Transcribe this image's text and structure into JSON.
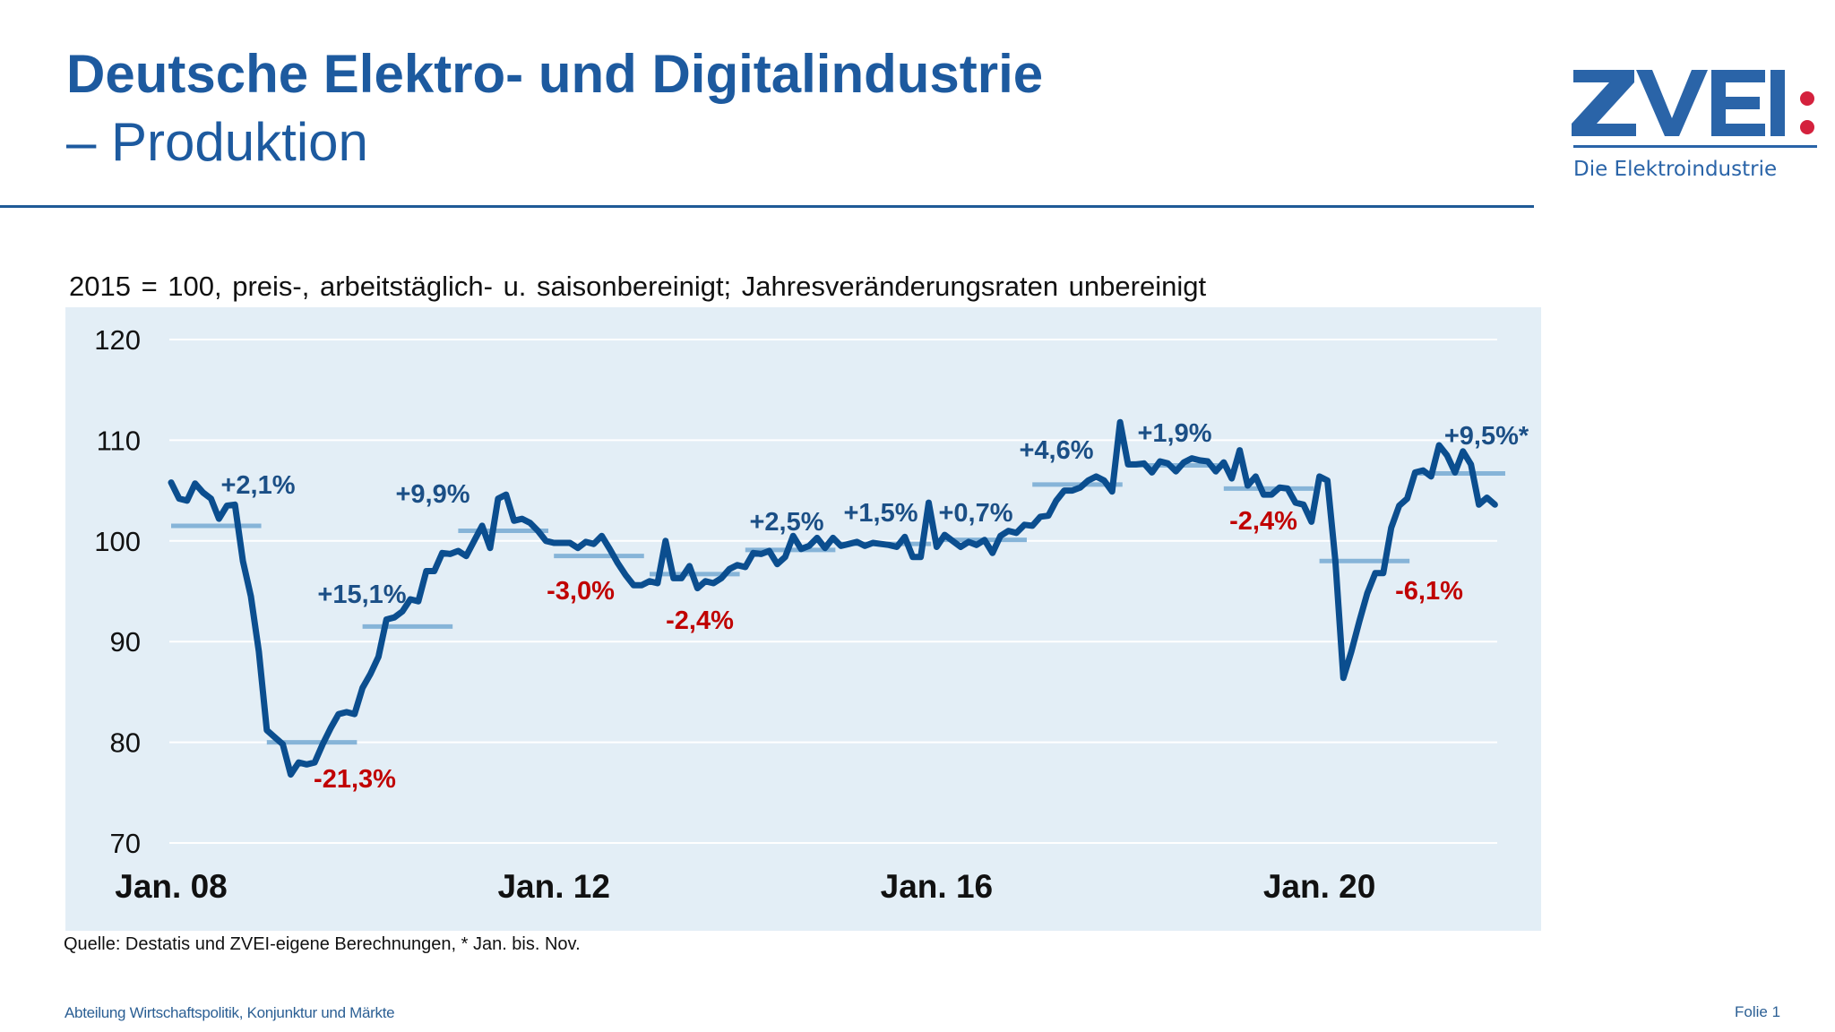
{
  "header": {
    "title_line1": "Deutsche Elektro- und Digitalindustrie",
    "title_line2": "– Produktion"
  },
  "logo": {
    "wordmark": "ZVEI:",
    "tagline": "Die Elektroindustrie",
    "colors": {
      "blue": "#2a64a8",
      "red": "#d4213d"
    }
  },
  "chart_data": {
    "type": "line",
    "subtitle": "2015 = 100, preis-, arbeitstäglich- u. saisonbereinigt; Jahresveränderungsraten unbereinigt",
    "ylim": [
      70,
      120
    ],
    "yticks": [
      "70",
      "80",
      "90",
      "100",
      "110",
      "120"
    ],
    "xticks": [
      {
        "label": "Jan. 08",
        "date": "2008-01"
      },
      {
        "label": "Jan. 12",
        "date": "2012-01"
      },
      {
        "label": "Jan. 16",
        "date": "2016-01"
      },
      {
        "label": "Jan. 20",
        "date": "2020-01"
      }
    ],
    "grid": true,
    "colors": {
      "line": "#0b4e8f",
      "average": "#86b4d8",
      "positive": "#1b4f86",
      "negative": "#c00000",
      "background": "#e3eef6"
    },
    "series": [
      {
        "start": "2008-01",
        "frequency": "monthly",
        "values": [
          105.8,
          104.2,
          104.0,
          105.7,
          104.8,
          104.2,
          102.2,
          103.5,
          103.6,
          98.0,
          94.5,
          89.0,
          81.2,
          80.5,
          79.8,
          76.8,
          78.0,
          77.8,
          78.0,
          79.8,
          81.4,
          82.8,
          83.0,
          82.8,
          85.4,
          86.8,
          88.5,
          92.2,
          92.4,
          93.0,
          94.2,
          94.0,
          97.0,
          97.0,
          98.8,
          98.7,
          99.0,
          98.5,
          100.0,
          101.5,
          99.3,
          104.2,
          104.6,
          102.0,
          102.2,
          101.8,
          101.0,
          100.0,
          99.8,
          99.8,
          99.8,
          99.3,
          99.9,
          99.7,
          100.5,
          99.2,
          97.8,
          96.6,
          95.6,
          95.6,
          96.0,
          95.8,
          100.0,
          96.3,
          96.3,
          97.5,
          95.3,
          96.0,
          95.8,
          96.3,
          97.2,
          97.6,
          97.4,
          98.8,
          98.7,
          99.0,
          97.7,
          98.4,
          100.5,
          99.2,
          99.5,
          100.3,
          99.3,
          100.3,
          99.5,
          99.7,
          99.9,
          99.5,
          99.8,
          99.7,
          99.6,
          99.4,
          100.4,
          98.4,
          98.4,
          103.8,
          99.4,
          100.6,
          100.0,
          99.4,
          99.9,
          99.6,
          100.1,
          98.8,
          100.5,
          101.0,
          100.8,
          101.6,
          101.5,
          102.4,
          102.5,
          104.0,
          105.0,
          105.0,
          105.3,
          106.0,
          106.4,
          106.0,
          104.9,
          111.8,
          107.6,
          107.6,
          107.7,
          106.8,
          107.9,
          107.7,
          106.9,
          107.8,
          108.2,
          108.0,
          107.9,
          106.9,
          107.8,
          106.2,
          109.0,
          105.5,
          106.4,
          104.6,
          104.6,
          105.3,
          105.2,
          103.8,
          103.6,
          101.9,
          106.4,
          106.0,
          98.0,
          86.4,
          89.0,
          92.0,
          94.8,
          96.8,
          96.8,
          101.3,
          103.5,
          104.2,
          106.8,
          107.0,
          106.4,
          109.5,
          108.5,
          106.8,
          108.9,
          107.6,
          103.6,
          104.3,
          103.6
        ]
      }
    ],
    "annual": [
      {
        "year": 2008,
        "average": 101.5,
        "change": "+2,1%"
      },
      {
        "year": 2009,
        "average": 80.0,
        "change": "-21,3%"
      },
      {
        "year": 2010,
        "average": 91.5,
        "change": "+15,1%"
      },
      {
        "year": 2011,
        "average": 101.0,
        "change": "+9,9%"
      },
      {
        "year": 2012,
        "average": 98.5,
        "change": "-3,0%"
      },
      {
        "year": 2013,
        "average": 96.7,
        "change": "-2,4%"
      },
      {
        "year": 2014,
        "average": 99.1,
        "change": "+2,5%"
      },
      {
        "year": 2015,
        "average": 99.7,
        "change": "+1,5%"
      },
      {
        "year": 2016,
        "average": 100.1,
        "change": "+0,7%"
      },
      {
        "year": 2017,
        "average": 105.6,
        "change": "+4,6%"
      },
      {
        "year": 2018,
        "average": 107.5,
        "change": "+1,9%"
      },
      {
        "year": 2019,
        "average": 105.2,
        "change": "-2,4%"
      },
      {
        "year": 2020,
        "average": 98.0,
        "change": "-6,1%"
      },
      {
        "year": 2021,
        "average": 106.7,
        "change": "+9,5%*"
      }
    ]
  },
  "source": "Quelle: Destatis und ZVEI-eigene Berechnungen, * Jan. bis. Nov.",
  "footer": {
    "department": "Abteilung Wirtschaftspolitik, Konjunktur und Märkte",
    "slide": "Folie 1"
  }
}
